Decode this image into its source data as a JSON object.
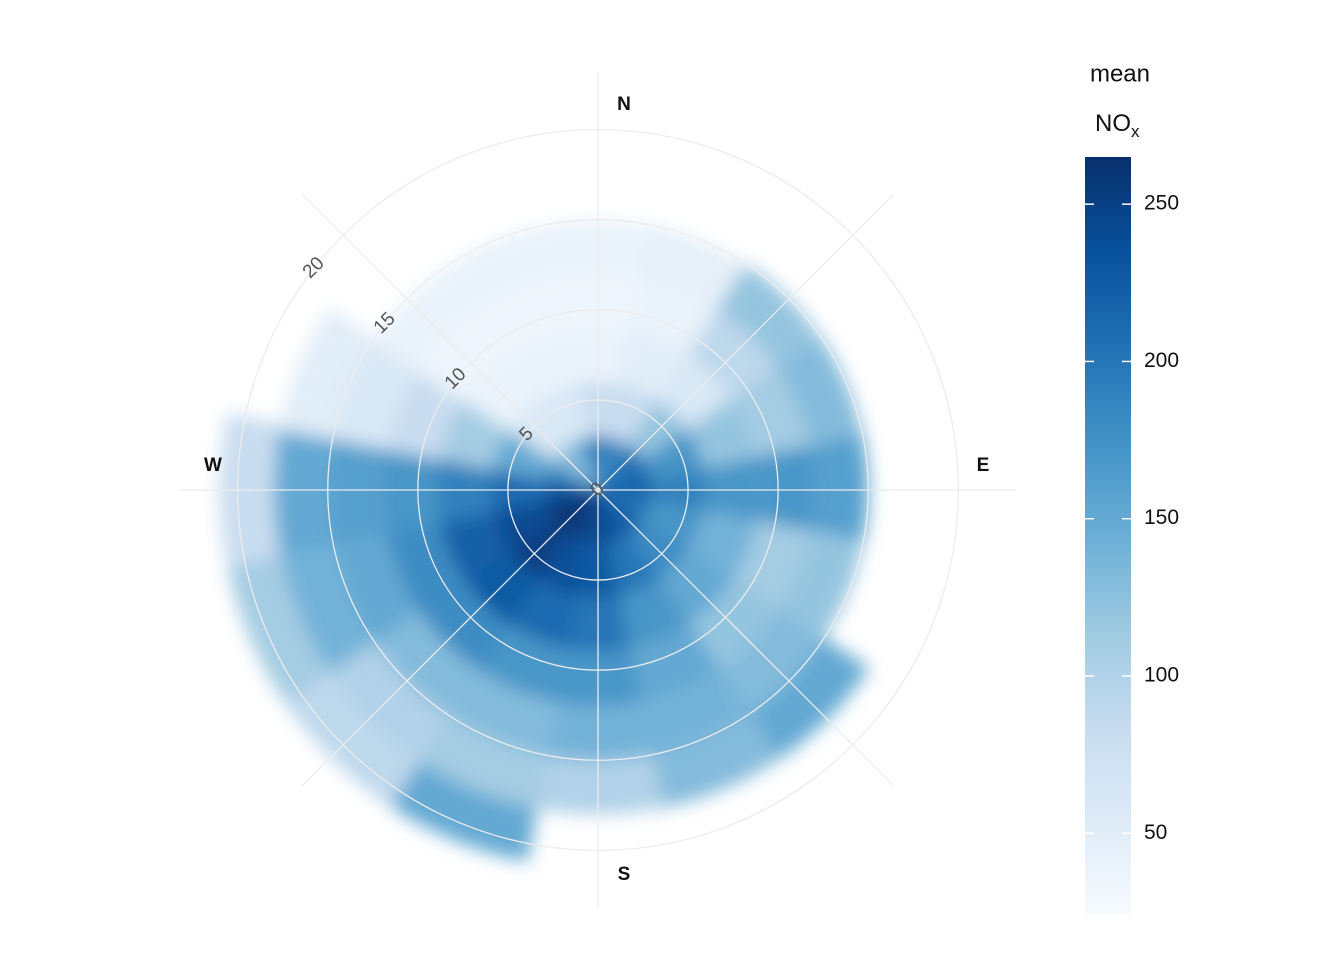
{
  "chart_data": {
    "type": "polar",
    "direction_labels": [
      "N",
      "E",
      "S",
      "W"
    ],
    "direction_label_angles": [
      0,
      90,
      180,
      270
    ],
    "directions": [
      0,
      22.5,
      45,
      67.5,
      90,
      112.5,
      135,
      157.5,
      180,
      202.5,
      225,
      247.5,
      270,
      292.5,
      315,
      337.5
    ],
    "speed_bins": [
      0,
      3,
      6,
      9,
      12,
      15,
      18,
      21
    ],
    "values": [
      [
        200,
        80,
        40,
        35,
        40,
        null,
        null
      ],
      [
        180,
        80,
        50,
        40,
        45,
        null,
        null
      ],
      [
        200,
        120,
        60,
        90,
        120,
        null,
        null
      ],
      [
        210,
        170,
        120,
        110,
        130,
        null,
        null
      ],
      [
        220,
        190,
        170,
        170,
        160,
        null,
        null
      ],
      [
        200,
        170,
        140,
        110,
        120,
        null,
        null
      ],
      [
        220,
        180,
        150,
        120,
        130,
        150,
        null
      ],
      [
        230,
        200,
        170,
        150,
        140,
        130,
        null
      ],
      [
        240,
        225,
        200,
        170,
        140,
        100,
        null
      ],
      [
        250,
        235,
        210,
        170,
        130,
        110,
        150
      ],
      [
        260,
        250,
        225,
        180,
        130,
        100,
        90
      ],
      [
        255,
        240,
        220,
        180,
        150,
        140,
        110
      ],
      [
        230,
        210,
        190,
        170,
        160,
        150,
        80
      ],
      [
        180,
        150,
        110,
        80,
        60,
        50,
        null
      ],
      [
        120,
        60,
        40,
        35,
        40,
        null,
        null
      ],
      [
        150,
        60,
        40,
        35,
        40,
        null,
        null
      ]
    ],
    "rlim": [
      0,
      23.2
    ],
    "rticks": [
      0,
      5,
      10,
      15,
      20
    ],
    "grid_angles": [
      0,
      45,
      90,
      135,
      180,
      225,
      270,
      315
    ],
    "legend_title": "mean",
    "legend_subtitle": {
      "main": "NO",
      "sub": "x"
    },
    "colors": [
      "#f7fbff",
      "#deebf7",
      "#c6dbef",
      "#9ecae1",
      "#6baed6",
      "#4292c6",
      "#2171b5",
      "#08519c",
      "#08306b"
    ],
    "clim": [
      24,
      265
    ],
    "cticks": [
      50,
      100,
      150,
      200,
      250
    ]
  }
}
